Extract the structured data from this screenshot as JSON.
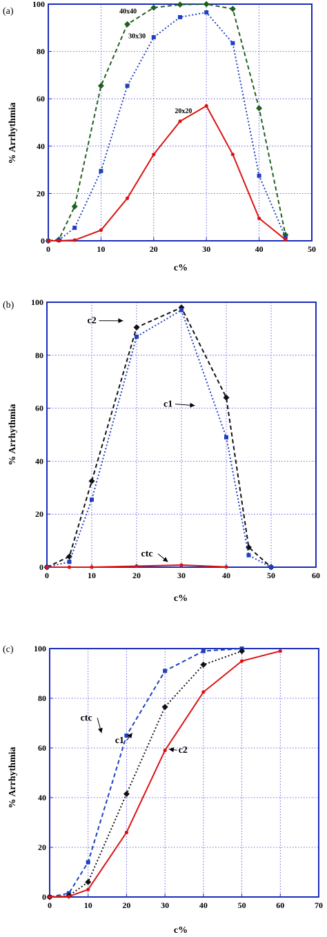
{
  "chart_data": [
    {
      "type": "line",
      "panel_label": "(a)",
      "xlabel": "c%",
      "ylabel": "% Arrhythmia",
      "xlim": [
        0,
        50
      ],
      "ylim": [
        0,
        100
      ],
      "xticks": [
        0,
        10,
        20,
        30,
        40,
        50
      ],
      "yticks": [
        0,
        20,
        40,
        60,
        80,
        100
      ],
      "grid": true,
      "series": [
        {
          "name": "40x40",
          "color": "#1f5f1f",
          "dash": "dashed",
          "marker": "diamond",
          "x": [
            0,
            2,
            5,
            10,
            15,
            20,
            25,
            30,
            35,
            40,
            45
          ],
          "y": [
            0,
            0.5,
            14.5,
            65.5,
            91.5,
            98.5,
            99.8,
            100,
            98,
            56,
            2.5
          ]
        },
        {
          "name": "30x30",
          "color": "#1f3fbf",
          "dash": "dotted",
          "marker": "square",
          "x": [
            0,
            2,
            5,
            10,
            15,
            20,
            25,
            30,
            35,
            40,
            45
          ],
          "y": [
            0,
            0.3,
            5.5,
            29.5,
            65.5,
            86,
            94.5,
            96.5,
            83.5,
            27.5,
            1.5
          ]
        },
        {
          "name": "20x20",
          "color": "#dd1111",
          "dash": "solid",
          "marker": "dot",
          "x": [
            0,
            2,
            5,
            10,
            15,
            20,
            25,
            30,
            35,
            40,
            45
          ],
          "y": [
            0,
            0,
            0.3,
            4.5,
            18,
            36.5,
            50.5,
            57,
            36.5,
            9.5,
            0.5
          ]
        }
      ],
      "annotations": [
        {
          "text": "40x40",
          "x": 13.5,
          "y": 96
        },
        {
          "text": "30x30",
          "x": 15.2,
          "y": 85.5
        },
        {
          "text": "20x20",
          "x": 24,
          "y": 54
        }
      ]
    },
    {
      "type": "line",
      "panel_label": "(b)",
      "xlabel": "c%",
      "ylabel": "% Arrhythmia",
      "xlim": [
        0,
        60
      ],
      "ylim": [
        0,
        100
      ],
      "xticks": [
        0,
        10,
        20,
        30,
        40,
        50,
        60
      ],
      "yticks": [
        0,
        20,
        40,
        60,
        80,
        100
      ],
      "grid": true,
      "series": [
        {
          "name": "c2",
          "color": "#111111",
          "dash": "dashed",
          "marker": "diamond",
          "x": [
            0,
            5,
            10,
            20,
            30,
            40,
            45,
            50
          ],
          "y": [
            0,
            4,
            32.5,
            90.5,
            98,
            64,
            7.5,
            0
          ]
        },
        {
          "name": "c1",
          "color": "#1f3fbf",
          "dash": "dotted",
          "marker": "square",
          "x": [
            0,
            5,
            10,
            20,
            30,
            40,
            45,
            50
          ],
          "y": [
            0,
            2,
            25.5,
            87,
            97,
            49,
            4.5,
            0
          ]
        },
        {
          "name": "ctc",
          "color": "#dd1111",
          "dash": "solid",
          "marker": "dot",
          "x": [
            0,
            5,
            10,
            20,
            30,
            40
          ],
          "y": [
            0,
            0,
            0,
            0.4,
            0.8,
            0.1
          ]
        }
      ],
      "annotations": [
        {
          "text": "c2",
          "x": 9,
          "y": 92,
          "arrow_to": [
            17,
            93
          ]
        },
        {
          "text": "c1",
          "x": 26,
          "y": 60.5,
          "arrow_to": [
            33,
            61
          ]
        },
        {
          "text": "ctc",
          "x": 21,
          "y": 4,
          "arrow_to": [
            27,
            2
          ]
        }
      ]
    },
    {
      "type": "line",
      "panel_label": "(c)",
      "xlabel": "c%",
      "ylabel": "% Arrhythmia",
      "xlim": [
        0,
        70
      ],
      "ylim": [
        0,
        100
      ],
      "xticks": [
        0,
        10,
        20,
        30,
        40,
        50,
        60,
        70
      ],
      "yticks": [
        0,
        20,
        40,
        60,
        80,
        100
      ],
      "grid": true,
      "series": [
        {
          "name": "ctc",
          "color": "#1f3fbf",
          "dash": "dashed",
          "marker": "square",
          "x": [
            0,
            5,
            10,
            20,
            30,
            40,
            50
          ],
          "y": [
            0,
            1.5,
            14,
            65,
            91,
            99,
            100
          ]
        },
        {
          "name": "c1",
          "color": "#111111",
          "dash": "dotted",
          "marker": "diamond",
          "x": [
            0,
            5,
            10,
            20,
            30,
            40,
            50
          ],
          "y": [
            0,
            0.5,
            6,
            41.5,
            76.5,
            93.5,
            99
          ]
        },
        {
          "name": "c2",
          "color": "#dd1111",
          "dash": "solid",
          "marker": "dot",
          "x": [
            0,
            5,
            10,
            20,
            30,
            40,
            50,
            60
          ],
          "y": [
            0,
            0.2,
            3,
            26,
            59,
            82.5,
            95,
            99
          ]
        }
      ],
      "annotations": [
        {
          "text": "ctc",
          "x": 8,
          "y": 71,
          "arrow_to": [
            13.5,
            66
          ]
        },
        {
          "text": "c1",
          "x": 17,
          "y": 62,
          "arrow_to": [
            21.5,
            66
          ]
        },
        {
          "text": "c2",
          "x": 33.5,
          "y": 58,
          "arrow_to": [
            31,
            59.5
          ]
        }
      ]
    }
  ]
}
